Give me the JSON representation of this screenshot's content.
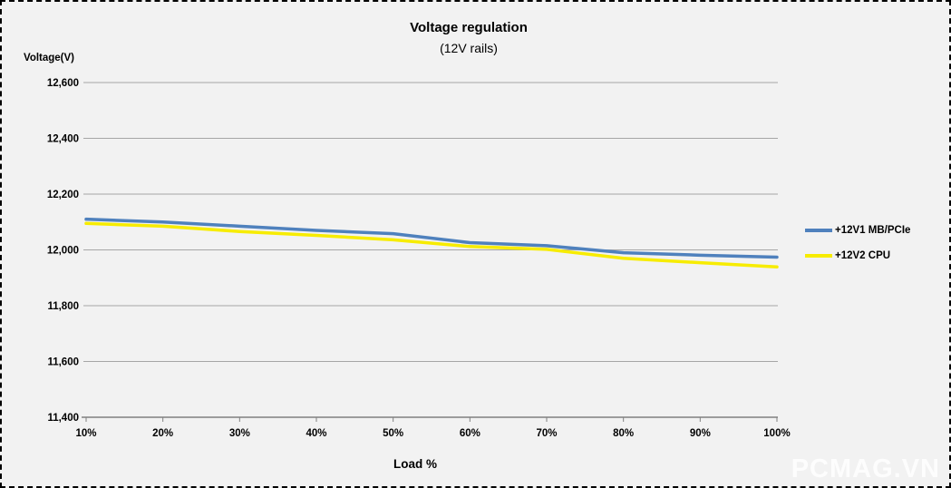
{
  "watermark": {
    "text": "PCMAG.VN"
  },
  "chart_data": {
    "type": "line",
    "title": "Voltage regulation",
    "subtitle": "(12V rails)",
    "xlabel": "Load %",
    "ylabel": "Voltage(V)",
    "categories": [
      "10%",
      "20%",
      "30%",
      "40%",
      "50%",
      "60%",
      "70%",
      "80%",
      "90%",
      "100%"
    ],
    "series": [
      {
        "name": "+12V1 MB/PCIe",
        "color": "#4F81BD",
        "values": [
          12110,
          12100,
          12085,
          12070,
          12058,
          12026,
          12015,
          11990,
          11981,
          11974
        ]
      },
      {
        "name": "+12V2 CPU",
        "color": "#F7EC00",
        "values": [
          12095,
          12085,
          12066,
          12052,
          12036,
          12012,
          12002,
          11970,
          11954,
          11939
        ]
      }
    ],
    "ylim": [
      11400,
      12600
    ],
    "ytick_step": 200,
    "ytick_labels": [
      "11,400",
      "11,600",
      "11,800",
      "12,000",
      "12,200",
      "12,400",
      "12,600"
    ],
    "grid": true,
    "legend_position": "right",
    "grid_color": "#a6a6a6",
    "axis_color": "#808080",
    "background_color": "#f2f2f2"
  }
}
